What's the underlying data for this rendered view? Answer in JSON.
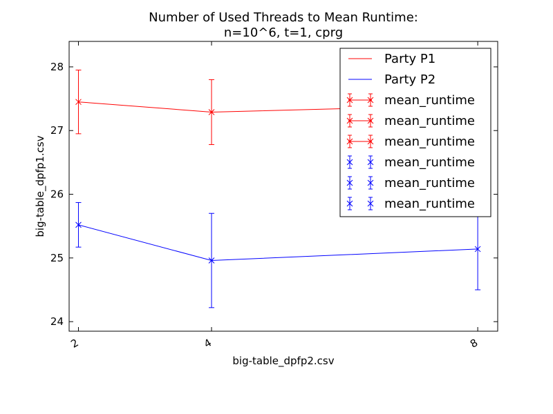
{
  "chart_data": {
    "type": "line",
    "title": [
      "Number of Used Threads to Mean Runtime:",
      "n=10^6, t=1, cprg"
    ],
    "xlabel": "big-table_dpfp2.csv",
    "ylabel": "big-table_dpfp1.csv",
    "x": [
      2,
      4,
      8
    ],
    "x_ticks": [
      "2",
      "4",
      "8"
    ],
    "y_ticks": [
      "24",
      "25",
      "26",
      "27",
      "28"
    ],
    "ylim": [
      23.85,
      28.4
    ],
    "series": [
      {
        "name": "Party P1",
        "color": "#ff0000",
        "values": [
          27.45,
          27.29,
          27.4
        ],
        "errors": [
          0.5,
          0.51,
          0.3
        ]
      },
      {
        "name": "Party P2",
        "color": "#0000ff",
        "values": [
          25.52,
          24.96,
          25.14
        ],
        "errors": [
          0.35,
          0.74,
          0.64
        ]
      }
    ],
    "legend": {
      "position": "top-right",
      "entries": [
        {
          "label": "Party P1",
          "color": "#ff0000",
          "marker": "line"
        },
        {
          "label": "Party P2",
          "color": "#0000ff",
          "marker": "line"
        },
        {
          "label": "mean_runtime",
          "color": "#ff0000",
          "marker": "errorbar-line"
        },
        {
          "label": "mean_runtime",
          "color": "#ff0000",
          "marker": "errorbar-line"
        },
        {
          "label": "mean_runtime",
          "color": "#ff0000",
          "marker": "errorbar-line"
        },
        {
          "label": "mean_runtime",
          "color": "#0000ff",
          "marker": "errorbar"
        },
        {
          "label": "mean_runtime",
          "color": "#0000ff",
          "marker": "errorbar"
        },
        {
          "label": "mean_runtime",
          "color": "#0000ff",
          "marker": "errorbar"
        }
      ]
    },
    "grid": false
  }
}
